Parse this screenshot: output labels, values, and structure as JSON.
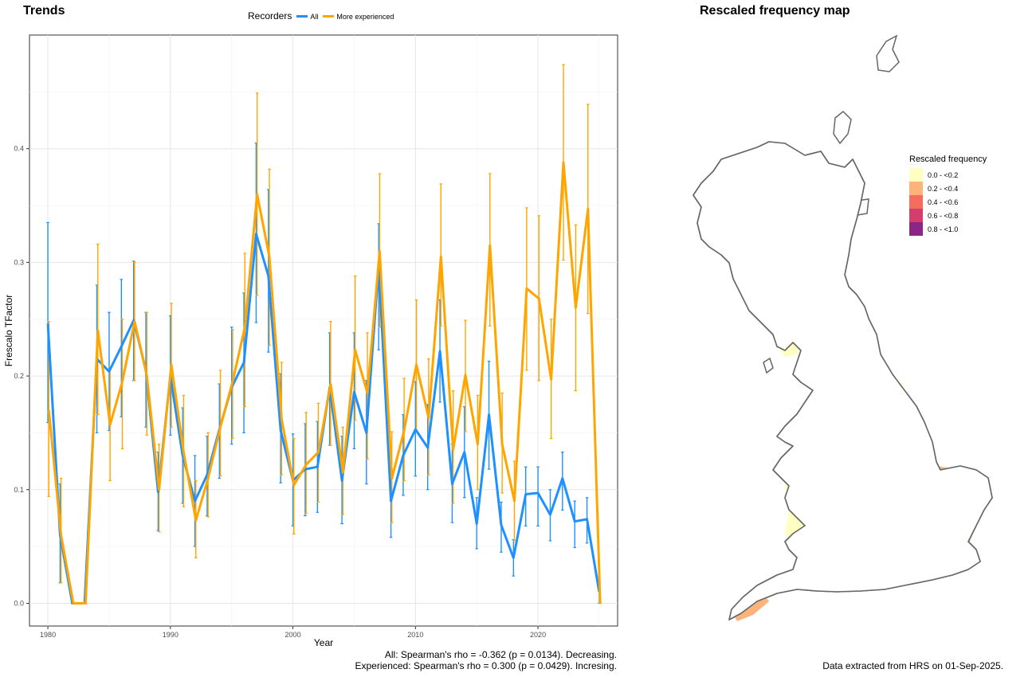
{
  "left_panel": {
    "title": "Trends"
  },
  "right_panel": {
    "title": "Rescaled frequency map"
  },
  "legend": {
    "title": "Recorders",
    "items": [
      {
        "label": "All",
        "color": "#1e90ff"
      },
      {
        "label": "More experienced",
        "color": "#ffa500"
      }
    ]
  },
  "stats": {
    "all": "All: Spearman's rho = -0.362 (p = 0.0134). Decreasing.",
    "experienced": "Experienced: Spearman's rho = 0.300 (p = 0.0429). Incresing."
  },
  "footer": "Data extracted from HRS on 01-Sep-2025.",
  "map_legend": {
    "title": "Rescaled frequency",
    "items": [
      {
        "label": "0.0 - <0.2",
        "color": "#ffffc2"
      },
      {
        "label": "0.2 - <0.4",
        "color": "#fdb37a"
      },
      {
        "label": "0.4 - <0.6",
        "color": "#f56d5e"
      },
      {
        "label": "0.6 - <0.8",
        "color": "#d43d6c"
      },
      {
        "label": "0.8 - <1.0",
        "color": "#8b2687"
      }
    ]
  },
  "chart_data": {
    "type": "line",
    "xlabel": "Year",
    "ylabel": "Frescalo TFactor",
    "xlim": [
      1978.5,
      2026.5
    ],
    "ylim": [
      -0.02,
      0.5
    ],
    "xticks": [
      1980,
      1990,
      2000,
      2010,
      2020
    ],
    "yticks": [
      0.0,
      0.1,
      0.2,
      0.3,
      0.4
    ],
    "ytick_labels": [
      "0.0",
      "0.1",
      "0.2",
      "0.3",
      "0.4"
    ],
    "grid": true,
    "legend_position": "top",
    "series": [
      {
        "name": "All",
        "color": "#1e90ff",
        "x": [
          1980,
          1981,
          1982,
          1983,
          1984,
          1985,
          1986,
          1987,
          1988,
          1989,
          1990,
          1991,
          1992,
          1993,
          1994,
          1995,
          1996,
          1997,
          1998,
          1999,
          2000,
          2001,
          2002,
          2003,
          2004,
          2005,
          2006,
          2007,
          2008,
          2009,
          2010,
          2011,
          2012,
          2013,
          2014,
          2015,
          2016,
          2017,
          2018,
          2019,
          2020,
          2021,
          2022,
          2023,
          2024,
          2025
        ],
        "y": [
          0.246,
          0.06,
          0.0,
          0.0,
          0.215,
          0.204,
          0.226,
          0.249,
          0.205,
          0.098,
          0.2,
          0.13,
          0.09,
          0.113,
          0.153,
          0.19,
          0.212,
          0.325,
          0.288,
          0.152,
          0.108,
          0.118,
          0.12,
          0.19,
          0.108,
          0.186,
          0.15,
          0.298,
          0.09,
          0.13,
          0.153,
          0.137,
          0.222,
          0.105,
          0.133,
          0.07,
          0.166,
          0.069,
          0.04,
          0.096,
          0.097,
          0.078,
          0.11,
          0.072,
          0.074,
          0.01
        ],
        "lower": [
          0.159,
          0.018,
          0.0,
          0.0,
          0.15,
          0.152,
          0.164,
          0.196,
          0.155,
          0.064,
          0.148,
          0.088,
          0.05,
          0.077,
          0.11,
          0.14,
          0.15,
          0.247,
          0.221,
          0.106,
          0.068,
          0.077,
          0.08,
          0.139,
          0.07,
          0.136,
          0.105,
          0.223,
          0.058,
          0.095,
          0.112,
          0.1,
          0.177,
          0.071,
          0.093,
          0.048,
          0.118,
          0.045,
          0.024,
          0.068,
          0.068,
          0.055,
          0.082,
          0.049,
          0.053,
          0.0
        ],
        "upper": [
          0.335,
          0.105,
          0.0,
          0.0,
          0.28,
          0.256,
          0.285,
          0.301,
          0.256,
          0.133,
          0.253,
          0.172,
          0.13,
          0.147,
          0.193,
          0.243,
          0.273,
          0.405,
          0.364,
          0.202,
          0.149,
          0.158,
          0.16,
          0.238,
          0.147,
          0.238,
          0.196,
          0.334,
          0.122,
          0.166,
          0.195,
          0.175,
          0.267,
          0.14,
          0.173,
          0.093,
          0.213,
          0.089,
          0.056,
          0.12,
          0.12,
          0.1,
          0.133,
          0.09,
          0.093,
          0.018
        ]
      },
      {
        "name": "More experienced",
        "color": "#ffa500",
        "x": [
          1980,
          1981,
          1982,
          1983,
          1984,
          1985,
          1986,
          1987,
          1988,
          1989,
          1990,
          1991,
          1992,
          1993,
          1994,
          1995,
          1996,
          1997,
          1998,
          1999,
          2000,
          2001,
          2002,
          2003,
          2004,
          2005,
          2006,
          2007,
          2008,
          2009,
          2010,
          2011,
          2012,
          2013,
          2014,
          2015,
          2016,
          2017,
          2018,
          2019,
          2020,
          2021,
          2022,
          2023,
          2024,
          2025
        ],
        "y": [
          0.17,
          0.06,
          0.0,
          0.0,
          0.24,
          0.157,
          0.195,
          0.248,
          0.2,
          0.1,
          0.21,
          0.133,
          0.073,
          0.11,
          0.155,
          0.195,
          0.243,
          0.36,
          0.305,
          0.162,
          0.104,
          0.122,
          0.133,
          0.193,
          0.115,
          0.223,
          0.185,
          0.31,
          0.11,
          0.152,
          0.21,
          0.163,
          0.305,
          0.135,
          0.201,
          0.14,
          0.315,
          0.14,
          0.09,
          0.277,
          0.268,
          0.197,
          0.388,
          0.26,
          0.347,
          0.0
        ],
        "lower": [
          0.094,
          0.018,
          0.0,
          0.0,
          0.166,
          0.108,
          0.136,
          0.196,
          0.148,
          0.063,
          0.155,
          0.085,
          0.04,
          0.076,
          0.112,
          0.145,
          0.173,
          0.271,
          0.227,
          0.113,
          0.061,
          0.079,
          0.089,
          0.139,
          0.078,
          0.161,
          0.127,
          0.243,
          0.071,
          0.108,
          0.152,
          0.113,
          0.244,
          0.088,
          0.151,
          0.1,
          0.244,
          0.097,
          0.055,
          0.205,
          0.196,
          0.145,
          0.302,
          0.187,
          0.255,
          0.0
        ],
        "upper": [
          0.248,
          0.11,
          0.0,
          0.0,
          0.316,
          0.208,
          0.25,
          0.3,
          0.256,
          0.14,
          0.264,
          0.183,
          0.108,
          0.15,
          0.205,
          0.241,
          0.308,
          0.449,
          0.382,
          0.212,
          0.145,
          0.168,
          0.176,
          0.248,
          0.155,
          0.288,
          0.238,
          0.378,
          0.151,
          0.198,
          0.267,
          0.215,
          0.369,
          0.187,
          0.249,
          0.183,
          0.378,
          0.185,
          0.125,
          0.348,
          0.341,
          0.25,
          0.474,
          0.333,
          0.439,
          0.0
        ]
      }
    ]
  }
}
